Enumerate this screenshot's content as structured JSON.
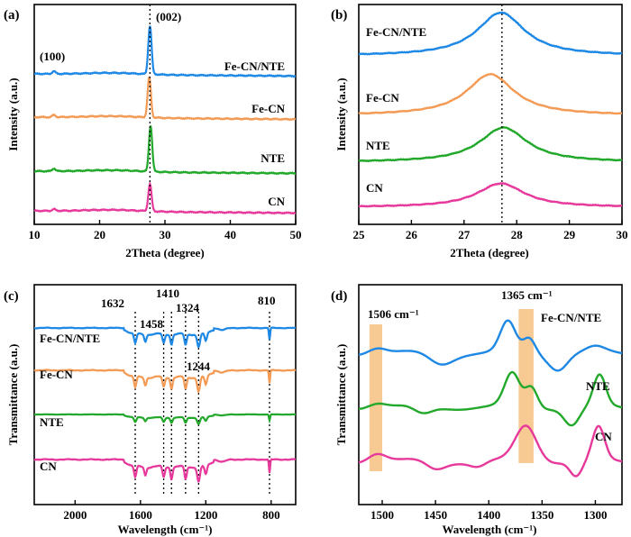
{
  "colors": {
    "blue": "#1e88e5",
    "orange": "#f39a55",
    "green": "#22a82a",
    "pink": "#e6399b",
    "band": "#f6c181"
  },
  "chart_data": [
    {
      "panel_label": "(a)",
      "type": "line",
      "xlabel": "2Theta (degree)",
      "ylabel": "Intensity (a.u.)",
      "xlim": [
        10,
        50
      ],
      "x_ticks": [
        "10",
        "20",
        "30",
        "40",
        "50"
      ],
      "ref_line_x": 27.7,
      "annotations": [
        {
          "text": "(100)",
          "x": 13
        },
        {
          "text": "(002)",
          "x": 27.7
        }
      ],
      "series": [
        {
          "name": "Fe-CN/NTE",
          "color": "#1e88e5",
          "peaks": [
            {
              "x": 27.7,
              "height": 0.9
            },
            {
              "x": 13.0,
              "height": 0.05
            }
          ]
        },
        {
          "name": "Fe-CN",
          "color": "#f39a55",
          "peaks": [
            {
              "x": 27.6,
              "height": 0.75
            },
            {
              "x": 13.0,
              "height": 0.04
            }
          ]
        },
        {
          "name": "NTE",
          "color": "#22a82a",
          "peaks": [
            {
              "x": 27.8,
              "height": 0.85
            },
            {
              "x": 13.0,
              "height": 0.05
            }
          ]
        },
        {
          "name": "CN",
          "color": "#e6399b",
          "peaks": [
            {
              "x": 27.7,
              "height": 0.5
            },
            {
              "x": 13.0,
              "height": 0.03
            }
          ]
        }
      ]
    },
    {
      "panel_label": "(b)",
      "type": "line",
      "xlabel": "2Theta (degree)",
      "ylabel": "Intensity (a.u.)",
      "xlim": [
        25,
        30
      ],
      "x_ticks": [
        "25",
        "26",
        "27",
        "28",
        "29",
        "30"
      ],
      "ref_line_x": 27.72,
      "series": [
        {
          "name": "Fe-CN/NTE",
          "color": "#1e88e5",
          "center": 27.7,
          "height": 1.0
        },
        {
          "name": "Fe-CN",
          "color": "#f39a55",
          "center": 27.5,
          "height": 0.95
        },
        {
          "name": "NTE",
          "color": "#22a82a",
          "center": 27.75,
          "height": 0.8
        },
        {
          "name": "CN",
          "color": "#e6399b",
          "center": 27.7,
          "height": 0.55
        }
      ]
    },
    {
      "panel_label": "(c)",
      "type": "line",
      "xlabel": "Wavelength (cm⁻¹)",
      "ylabel": "Transmittance (a.u.)",
      "xlim": [
        2250,
        650
      ],
      "x_ticks": [
        "2000",
        "1600",
        "1200",
        "800"
      ],
      "marked_bands": [
        "1632",
        "1458",
        "1410",
        "1324",
        "1244",
        "810"
      ],
      "series": [
        {
          "name": "Fe-CN/NTE",
          "color": "#1e88e5"
        },
        {
          "name": "Fe-CN",
          "color": "#f39a55"
        },
        {
          "name": "NTE",
          "color": "#22a82a"
        },
        {
          "name": "CN",
          "color": "#e6399b"
        }
      ]
    },
    {
      "panel_label": "(d)",
      "type": "line",
      "xlabel": "Wavelength (cm⁻¹)",
      "ylabel": "Transmittance (a.u.)",
      "xlim": [
        1522,
        1275
      ],
      "x_ticks": [
        "1500",
        "1450",
        "1400",
        "1350",
        "1300"
      ],
      "highlight_bands": [
        {
          "label": "1506 cm⁻¹",
          "from": 1500,
          "to": 1512
        },
        {
          "label": "1365 cm⁻¹",
          "from": 1358,
          "to": 1372
        }
      ],
      "series": [
        {
          "name": "Fe-CN/NTE",
          "color": "#1e88e5"
        },
        {
          "name": "NTE",
          "color": "#22a82a"
        },
        {
          "name": "CN",
          "color": "#e6399b"
        }
      ]
    }
  ]
}
